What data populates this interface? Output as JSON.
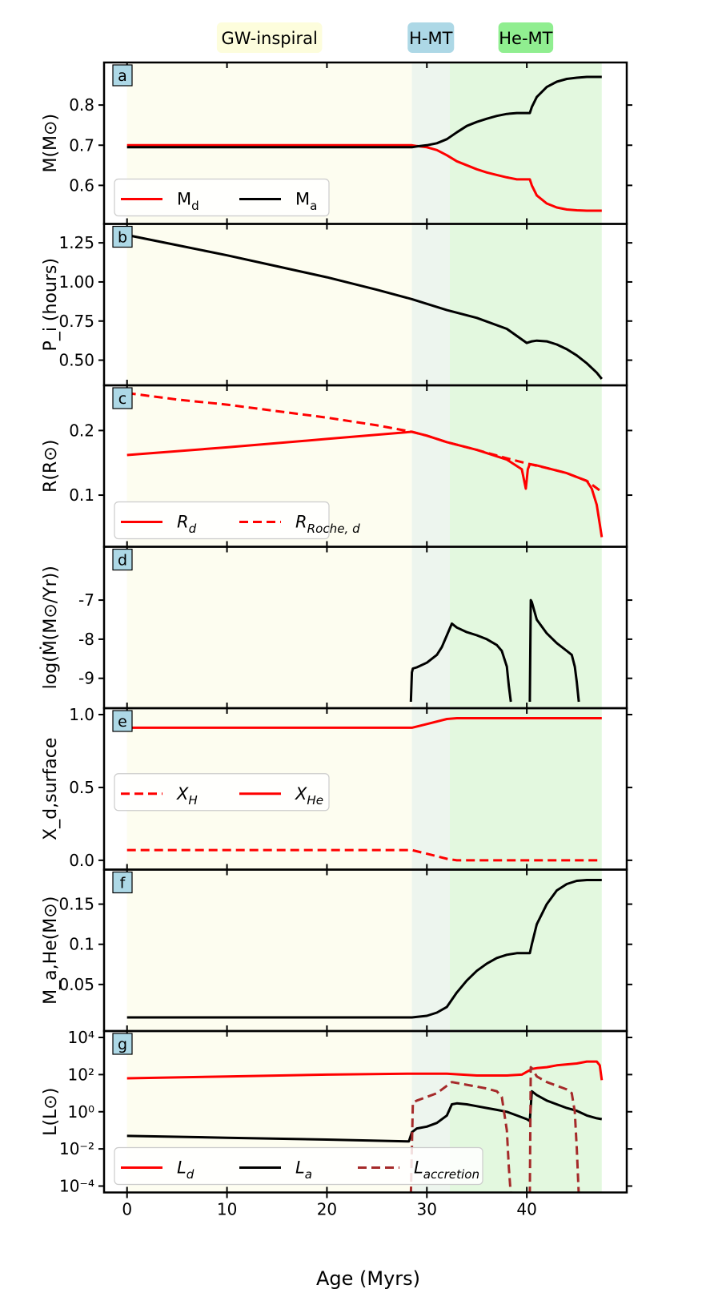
{
  "chart_data": {
    "type": "line",
    "xlabel": "Age (Myrs)",
    "xlim": [
      -2.3,
      50
    ],
    "xticks": [
      0,
      10,
      20,
      30,
      40
    ],
    "phases": [
      {
        "label": "GW-inspiral",
        "start": 0,
        "end": 28.5,
        "color": "#fdfdf0",
        "badge": "#fdfddc"
      },
      {
        "label": "H-MT",
        "start": 28.5,
        "end": 32.3,
        "color": "#edf5ee",
        "badge": "#add8e6"
      },
      {
        "label": "He-MT",
        "start": 32.3,
        "end": 47.5,
        "color": "#e3f8df",
        "badge": "#90ee90"
      }
    ],
    "panels": [
      {
        "letter": "a",
        "ylabel": "M(M⊙)",
        "ylim": [
          0.52,
          0.89
        ],
        "scale": "linear",
        "yticks": [
          0.6,
          0.7,
          0.8
        ],
        "yticklabels": [
          "0.6",
          "0.7",
          "0.8"
        ],
        "legend": {
          "position": "lower-left",
          "ncol": 2
        },
        "series": [
          {
            "name": "M_d",
            "label": "M",
            "sub": "d",
            "italic": false,
            "color": "#ff0000",
            "dash": "solid",
            "x": [
              0,
              28,
              28.5,
              29,
              30,
              31,
              32,
              33,
              34,
              35,
              36,
              37,
              38,
              39,
              40,
              40.3,
              40.5,
              41,
              42,
              43,
              44,
              45,
              46,
              47,
              47.5
            ],
            "y": [
              0.7,
              0.7,
              0.7,
              0.698,
              0.695,
              0.688,
              0.675,
              0.66,
              0.65,
              0.64,
              0.632,
              0.626,
              0.62,
              0.615,
              0.615,
              0.615,
              0.6,
              0.575,
              0.555,
              0.545,
              0.54,
              0.538,
              0.537,
              0.537,
              0.537
            ]
          },
          {
            "name": "M_a",
            "label": "M",
            "sub": "a",
            "italic": false,
            "color": "#000000",
            "dash": "solid",
            "x": [
              0,
              28,
              28.5,
              29,
              30,
              31,
              32,
              33,
              34,
              35,
              36,
              37,
              38,
              39,
              40,
              40.3,
              40.5,
              41,
              42,
              43,
              44,
              45,
              46,
              47,
              47.5
            ],
            "y": [
              0.695,
              0.695,
              0.695,
              0.697,
              0.7,
              0.705,
              0.715,
              0.732,
              0.748,
              0.758,
              0.766,
              0.773,
              0.778,
              0.78,
              0.78,
              0.78,
              0.795,
              0.82,
              0.845,
              0.858,
              0.865,
              0.868,
              0.87,
              0.87,
              0.87
            ]
          }
        ]
      },
      {
        "letter": "b",
        "ylabel": "P_i (hours)",
        "ylim": [
          0.38,
          1.33
        ],
        "scale": "linear",
        "yticks": [
          0.5,
          0.75,
          1.0,
          1.25
        ],
        "yticklabels": [
          "0.50",
          "0.75",
          "1.00",
          "1.25"
        ],
        "legend": null,
        "series": [
          {
            "name": "P_i",
            "label": "P",
            "sub": "i",
            "italic": true,
            "color": "#000000",
            "dash": "solid",
            "x": [
              0,
              5,
              10,
              15,
              20,
              25,
              28.5,
              32,
              35,
              38,
              40,
              40.5,
              41,
              42,
              43,
              44,
              45,
              46,
              47,
              47.5
            ],
            "y": [
              1.3,
              1.235,
              1.17,
              1.1,
              1.03,
              0.95,
              0.89,
              0.82,
              0.77,
              0.7,
              0.61,
              0.62,
              0.625,
              0.62,
              0.6,
              0.57,
              0.53,
              0.48,
              0.42,
              0.38
            ]
          }
        ]
      },
      {
        "letter": "c",
        "ylabel": "R(R⊙)",
        "ylim": [
          0.03,
          0.26
        ],
        "scale": "linear",
        "yticks": [
          0.1,
          0.2
        ],
        "yticklabels": [
          "0.1",
          "0.2"
        ],
        "legend": {
          "position": "lower-left",
          "ncol": 2
        },
        "series": [
          {
            "name": "R_d",
            "label": "R",
            "sub": "d",
            "italic": true,
            "color": "#ff0000",
            "dash": "solid",
            "x": [
              0,
              10,
              20,
              28.5,
              30,
              32,
              35,
              38,
              39.5,
              39.9,
              40.1,
              40.3,
              41,
              42,
              44,
              46,
              46.5,
              47,
              47.3,
              47.5
            ],
            "y": [
              0.162,
              0.174,
              0.187,
              0.198,
              0.192,
              0.182,
              0.17,
              0.155,
              0.14,
              0.11,
              0.14,
              0.148,
              0.146,
              0.142,
              0.134,
              0.122,
              0.11,
              0.085,
              0.055,
              0.035
            ]
          },
          {
            "name": "R_Roche,d",
            "label": "R",
            "sub": "Roche, d",
            "italic": true,
            "color": "#ff0000",
            "dash": "dashed",
            "x": [
              0,
              5,
              10,
              15,
              20,
              25,
              28.5,
              30,
              32,
              35,
              38,
              40,
              42,
              44,
              46,
              47.5
            ],
            "y": [
              0.258,
              0.248,
              0.24,
              0.23,
              0.22,
              0.208,
              0.198,
              0.192,
              0.182,
              0.17,
              0.157,
              0.149,
              0.142,
              0.134,
              0.122,
              0.105
            ]
          }
        ]
      },
      {
        "letter": "d",
        "ylabel": "log(Ṁ(M⊙/Yr))",
        "ylim": [
          -9.6,
          -5.8
        ],
        "scale": "linear",
        "yticks": [
          -9,
          -8,
          -7
        ],
        "yticklabels": [
          "-9",
          "-8",
          "-7"
        ],
        "legend": null,
        "series": [
          {
            "name": "log_Mdot_H",
            "label": "log Ṁ",
            "sub": "",
            "italic": false,
            "color": "#000000",
            "dash": "solid",
            "x": [
              28.4,
              28.5,
              28.6,
              29,
              30,
              31,
              31.5,
              32,
              32.5,
              33,
              34,
              35,
              36,
              37,
              37.5,
              38,
              38.2,
              38.4
            ],
            "y": [
              -9.6,
              -8.85,
              -8.75,
              -8.72,
              -8.6,
              -8.4,
              -8.2,
              -7.9,
              -7.6,
              -7.7,
              -7.82,
              -7.9,
              -8.0,
              -8.15,
              -8.3,
              -8.7,
              -9.2,
              -9.6
            ]
          },
          {
            "name": "log_Mdot_He",
            "label": "log Ṁ",
            "sub": "",
            "italic": false,
            "color": "#000000",
            "dash": "solid",
            "x": [
              40.3,
              40.4,
              40.5,
              41,
              42,
              43,
              44,
              44.5,
              44.8,
              45,
              45.2
            ],
            "y": [
              -9.6,
              -7.0,
              -7.05,
              -7.5,
              -7.85,
              -8.1,
              -8.3,
              -8.4,
              -8.7,
              -9.1,
              -9.6
            ]
          }
        ]
      },
      {
        "letter": "e",
        "ylabel": "X_d,surface",
        "ylim": [
          -0.02,
          1.0
        ],
        "scale": "linear",
        "yticks": [
          0.0,
          0.5,
          1.0
        ],
        "yticklabels": [
          "0.0",
          "0.5",
          "1.0"
        ],
        "legend": {
          "position": "center-left",
          "ncol": 2
        },
        "series": [
          {
            "name": "X_H",
            "label": "X",
            "sub": "H",
            "italic": true,
            "color": "#ff0000",
            "dash": "dashed",
            "x": [
              0,
              28.5,
              30,
              32,
              33,
              47.5
            ],
            "y": [
              0.07,
              0.07,
              0.045,
              0.01,
              0.0,
              0.0
            ]
          },
          {
            "name": "X_He",
            "label": "X",
            "sub": "He",
            "italic": true,
            "color": "#ff0000",
            "dash": "solid",
            "x": [
              0,
              28.5,
              30,
              32,
              33,
              47.5
            ],
            "y": [
              0.91,
              0.91,
              0.935,
              0.97,
              0.975,
              0.975
            ]
          }
        ]
      },
      {
        "letter": "f",
        "ylabel": "M_a,He(M⊙)",
        "ylim": [
          0.0,
          0.185
        ],
        "scale": "linear",
        "yticks": [
          0.05,
          0.1,
          0.15
        ],
        "yticklabels": [
          "0.05",
          "0.1",
          "0.15"
        ],
        "legend": null,
        "series": [
          {
            "name": "M_a,He",
            "label": "M",
            "sub": "a, He",
            "italic": false,
            "color": "#000000",
            "dash": "solid",
            "x": [
              0,
              28,
              28.5,
              30,
              31,
              32,
              33,
              34,
              35,
              36,
              37,
              38,
              39,
              40,
              40.3,
              40.5,
              41,
              42,
              43,
              44,
              45,
              46,
              47,
              47.5
            ],
            "y": [
              0.009,
              0.009,
              0.009,
              0.011,
              0.015,
              0.022,
              0.04,
              0.055,
              0.067,
              0.076,
              0.083,
              0.087,
              0.089,
              0.089,
              0.089,
              0.1,
              0.125,
              0.15,
              0.167,
              0.175,
              0.179,
              0.18,
              0.18,
              0.18
            ]
          }
        ]
      },
      {
        "letter": "g",
        "ylabel": "L(L⊙)",
        "ylim": [
          -4,
          4
        ],
        "scale": "log",
        "yticks": [
          -4,
          -2,
          0,
          2,
          4
        ],
        "yticklabels": [
          "10⁻⁴",
          "10⁻²",
          "10⁰",
          "10²",
          "10⁴"
        ],
        "legend": {
          "position": "lower-left",
          "ncol": 3
        },
        "series": [
          {
            "name": "L_d",
            "label": "L",
            "sub": "d",
            "italic": true,
            "color": "#ff0000",
            "dash": "solid",
            "x": [
              0,
              10,
              20,
              28.5,
              32,
              35,
              38,
              39.5,
              40,
              40.5,
              41,
              42,
              43,
              44,
              45,
              46,
              47,
              47.3,
              47.5
            ],
            "y": [
              1.8,
              1.9,
              2.0,
              2.05,
              2.05,
              1.95,
              1.95,
              2.0,
              2.15,
              2.3,
              2.35,
              2.4,
              2.5,
              2.55,
              2.6,
              2.7,
              2.7,
              2.5,
              1.7
            ]
          },
          {
            "name": "L_a",
            "label": "L",
            "sub": "a",
            "italic": true,
            "color": "#000000",
            "dash": "solid",
            "x": [
              0,
              10,
              20,
              28.2,
              28.5,
              29,
              30,
              31,
              32,
              32.5,
              33,
              34,
              35,
              36,
              37,
              38,
              39,
              40,
              40.3,
              40.5,
              41,
              42,
              43,
              44,
              45,
              46,
              47,
              47.5
            ],
            "y": [
              -1.3,
              -1.4,
              -1.5,
              -1.6,
              -1.1,
              -0.9,
              -0.8,
              -0.6,
              -0.2,
              0.4,
              0.45,
              0.4,
              0.3,
              0.2,
              0.1,
              0.0,
              -0.2,
              -0.4,
              -0.5,
              1.1,
              0.9,
              0.6,
              0.4,
              0.2,
              0.05,
              -0.2,
              -0.35,
              -0.4
            ]
          },
          {
            "name": "L_accretion",
            "label": "L",
            "sub": "accretion",
            "italic": true,
            "color": "#a52a2a",
            "dash": "dashed",
            "x": [
              28.4,
              28.6,
              29,
              30,
              31,
              32,
              32.5,
              33,
              34,
              35,
              36,
              37,
              37.5,
              38,
              38.2,
              38.4
            ],
            "y": [
              -4.5,
              0.5,
              0.6,
              0.8,
              1.0,
              1.4,
              1.6,
              1.55,
              1.45,
              1.35,
              1.25,
              1.1,
              0.8,
              -1.0,
              -3.0,
              -4.5
            ]
          },
          {
            "name": "L_accretion_2",
            "label": "L",
            "sub": "accretion",
            "italic": true,
            "color": "#a52a2a",
            "dash": "dashed",
            "x": [
              40.3,
              40.4,
              40.5,
              41,
              42,
              43,
              44,
              44.5,
              44.8,
              45,
              45.2
            ],
            "y": [
              -4.5,
              2.4,
              2.35,
              1.9,
              1.6,
              1.4,
              1.2,
              1.0,
              0.0,
              -2.0,
              -4.5
            ]
          }
        ]
      }
    ]
  }
}
